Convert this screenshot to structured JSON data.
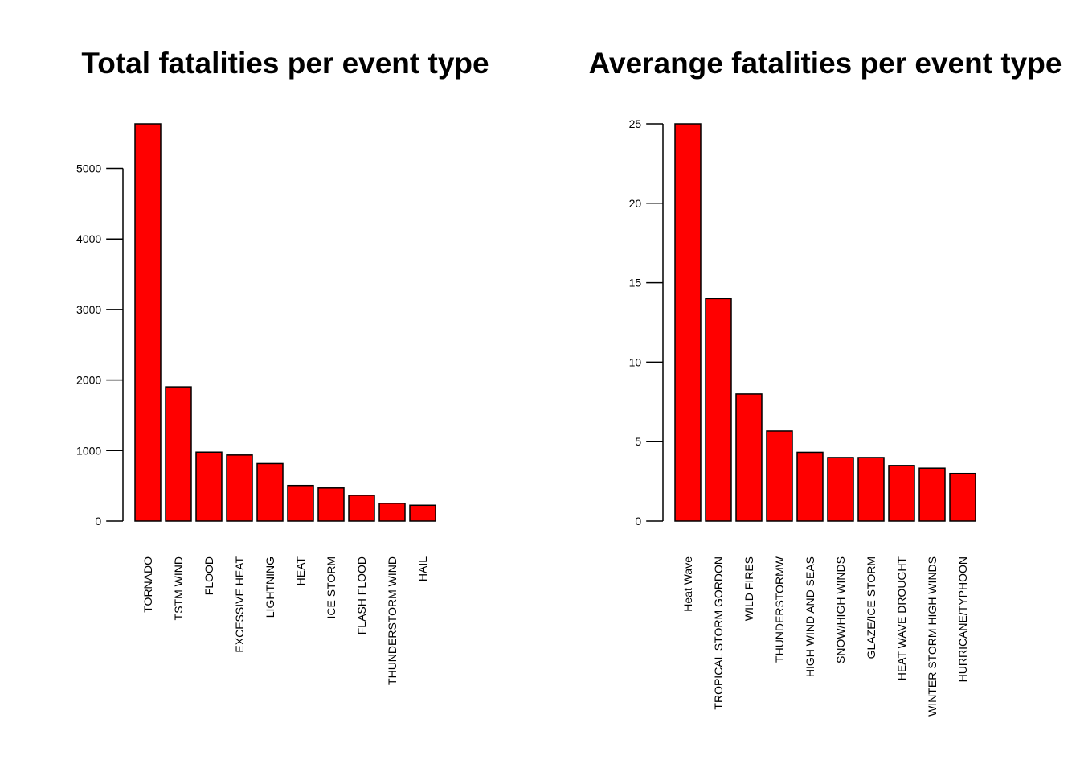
{
  "colors": {
    "bar_fill": "#ff0000",
    "bar_stroke": "#000000",
    "background": "#ffffff"
  },
  "chart_data": [
    {
      "type": "bar",
      "title": "Total fatalities per event type",
      "xlabel": "",
      "ylabel": "",
      "categories": [
        "TORNADO",
        "TSTM WIND",
        "FLOOD",
        "EXCESSIVE HEAT",
        "LIGHTNING",
        "HEAT",
        "ICE STORM",
        "FLASH FLOOD",
        "THUNDERSTORM WIND",
        "HAIL"
      ],
      "values": [
        5633,
        1903,
        978,
        937,
        816,
        505,
        470,
        366,
        253,
        225
      ],
      "yticks": [
        0,
        1000,
        2000,
        3000,
        4000,
        5000
      ],
      "ylim": [
        0,
        5633
      ],
      "grid": false,
      "legend": "none"
    },
    {
      "type": "bar",
      "title": "Averange fatalities per event type",
      "xlabel": "",
      "ylabel": "",
      "categories": [
        "Heat Wave",
        "TROPICAL STORM GORDON",
        "WILD FIRES",
        "THUNDERSTORMW",
        "HIGH WIND AND SEAS",
        "SNOW/HIGH WINDS",
        "GLAZE/ICE STORM",
        "HEAT WAVE DROUGHT",
        "WINTER STORM HIGH WINDS",
        "HURRICANE/TYPHOON"
      ],
      "values": [
        25,
        14,
        8,
        5.67,
        4.33,
        4,
        4,
        3.5,
        3.33,
        3
      ],
      "yticks": [
        0,
        5,
        10,
        15,
        20,
        25
      ],
      "ylim": [
        0,
        25
      ],
      "grid": false,
      "legend": "none"
    }
  ]
}
